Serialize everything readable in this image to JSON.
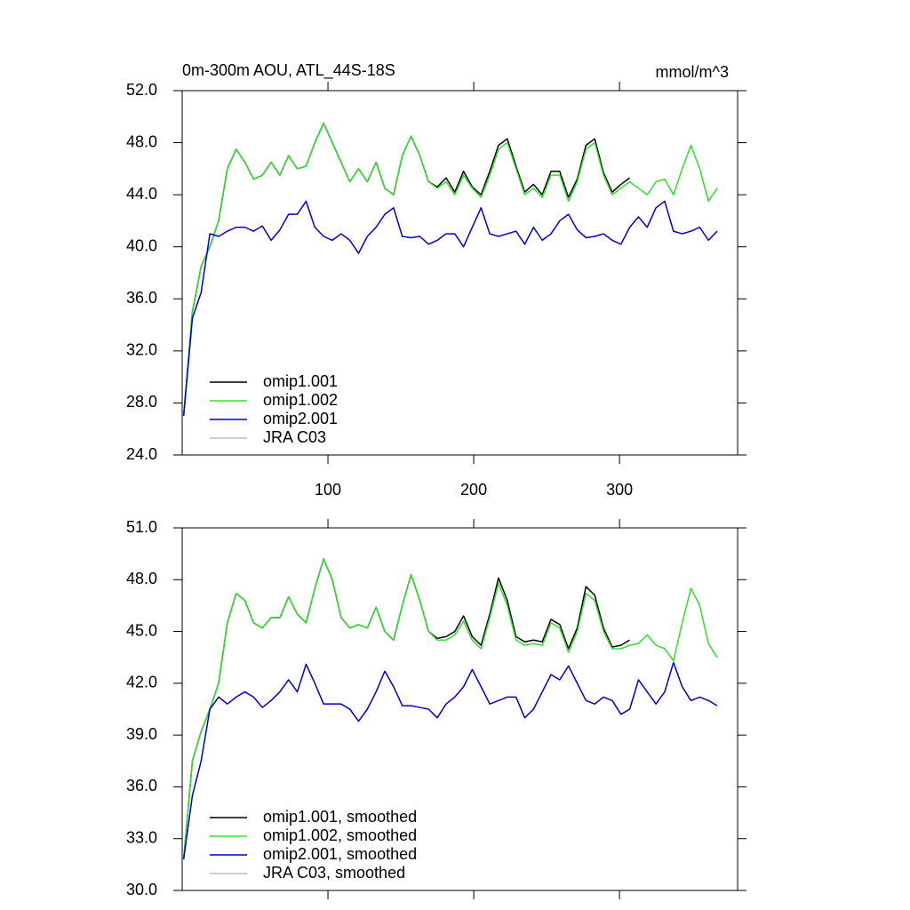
{
  "chart_data": [
    {
      "type": "line",
      "title": "0m-300m AOU, ATL_44S-18S",
      "units": "mmol/m^3",
      "x": [
        1,
        7,
        13,
        19,
        25,
        31,
        37,
        43,
        49,
        55,
        61,
        67,
        73,
        79,
        85,
        91,
        97,
        103,
        109,
        115,
        121,
        127,
        133,
        139,
        145,
        151,
        157,
        163,
        169,
        175,
        181,
        187,
        193,
        199,
        205,
        211,
        217,
        223,
        229,
        235,
        241,
        247,
        253,
        259,
        265,
        271,
        277,
        283,
        289,
        295,
        301,
        307,
        313,
        319,
        325,
        331,
        337,
        343,
        349,
        355,
        361,
        367
      ],
      "xlim": [
        0,
        381
      ],
      "xticks": [
        100,
        200,
        300
      ],
      "ylim": [
        24,
        52
      ],
      "yticks": [
        {
          "value": 24,
          "label": "24.0"
        },
        {
          "value": 28,
          "label": "28.0"
        },
        {
          "value": 32,
          "label": "32.0"
        },
        {
          "value": 36,
          "label": "36.0"
        },
        {
          "value": 40,
          "label": "40.0"
        },
        {
          "value": 44,
          "label": "44.0"
        },
        {
          "value": 48,
          "label": "48.0"
        },
        {
          "value": 52,
          "label": "52.0"
        }
      ],
      "legend": "lower left",
      "series": [
        {
          "name": "omip1.001",
          "color": "#000000",
          "values": [
            27,
            35,
            38.5,
            40,
            42,
            46,
            47.5,
            46.5,
            45.2,
            45.5,
            46.5,
            45.5,
            47,
            46,
            46.2,
            48,
            49.5,
            48,
            46.5,
            45,
            46,
            45,
            46.5,
            44.5,
            44,
            47,
            48.5,
            47,
            45,
            44.6,
            45.3,
            44.2,
            45.8,
            44.6,
            44,
            45.8,
            47.8,
            48.3,
            46.2,
            44.2,
            44.8,
            44,
            45.8,
            45.8,
            43.8,
            45.2,
            47.8,
            48.3,
            45.7,
            44.2,
            44.8,
            45.3,
            null,
            null,
            null,
            null,
            null,
            null,
            null,
            null,
            null,
            null
          ]
        },
        {
          "name": "omip1.002",
          "color": "#33dd33",
          "values": [
            27,
            35,
            38.5,
            40,
            42,
            46,
            47.5,
            46.5,
            45.2,
            45.5,
            46.5,
            45.5,
            47,
            46,
            46.2,
            48,
            49.5,
            48,
            46.5,
            45,
            46,
            45,
            46.5,
            44.5,
            44,
            47,
            48.5,
            47,
            45,
            44.5,
            45,
            44,
            45.5,
            44.5,
            43.8,
            45.5,
            47.5,
            48,
            46,
            44,
            44.5,
            43.8,
            45.5,
            45.5,
            43.5,
            45,
            47.5,
            48,
            45.5,
            44,
            44.5,
            45,
            44.5,
            44,
            45,
            45.2,
            44,
            46,
            47.8,
            46,
            43.5,
            44.5
          ]
        },
        {
          "name": "omip2.001",
          "color": "#0000cc",
          "values": [
            27,
            34.5,
            36.5,
            41,
            40.8,
            41.2,
            41.5,
            41.5,
            41.2,
            41.6,
            40.5,
            41.3,
            42.5,
            42.5,
            43.5,
            41.5,
            40.8,
            40.5,
            41,
            40.5,
            39.5,
            40.8,
            41.5,
            42.5,
            43,
            40.8,
            40.7,
            40.8,
            40.2,
            40.5,
            41,
            41,
            40,
            41.5,
            43,
            41,
            40.8,
            41,
            41.2,
            40.2,
            41.5,
            40.5,
            41,
            42,
            42.5,
            41.3,
            40.7,
            40.8,
            41,
            40.5,
            40.2,
            41.5,
            42.3,
            41.5,
            43,
            43.5,
            41.2,
            41,
            41.2,
            41.5,
            40.5,
            41.2
          ]
        },
        {
          "name": "JRA C03",
          "color": "#bbbbbb",
          "values": [
            null,
            null,
            null,
            null,
            null,
            null,
            null,
            null,
            null,
            null,
            null,
            null,
            null,
            null,
            null,
            null,
            null,
            null,
            null,
            null,
            null,
            null,
            null,
            null,
            null,
            null,
            null,
            null,
            null,
            null,
            null,
            null,
            null,
            null,
            null,
            null,
            null,
            null,
            null,
            null,
            null,
            null,
            null,
            null,
            null,
            null,
            null,
            null,
            null,
            null,
            null,
            null,
            null,
            null,
            null,
            null,
            null,
            null,
            null,
            null,
            null,
            null
          ]
        }
      ]
    },
    {
      "type": "line",
      "x": [
        1,
        7,
        13,
        19,
        25,
        31,
        37,
        43,
        49,
        55,
        61,
        67,
        73,
        79,
        85,
        91,
        97,
        103,
        109,
        115,
        121,
        127,
        133,
        139,
        145,
        151,
        157,
        163,
        169,
        175,
        181,
        187,
        193,
        199,
        205,
        211,
        217,
        223,
        229,
        235,
        241,
        247,
        253,
        259,
        265,
        271,
        277,
        283,
        289,
        295,
        301,
        307,
        313,
        319,
        325,
        331,
        337,
        343,
        349,
        355,
        361,
        367
      ],
      "xlim": [
        0,
        381
      ],
      "xticks": [
        100,
        200,
        300
      ],
      "ylim": [
        30,
        51
      ],
      "yticks": [
        {
          "value": 30,
          "label": "30.0"
        },
        {
          "value": 33,
          "label": "33.0"
        },
        {
          "value": 36,
          "label": "36.0"
        },
        {
          "value": 39,
          "label": "39.0"
        },
        {
          "value": 42,
          "label": "42.0"
        },
        {
          "value": 45,
          "label": "45.0"
        },
        {
          "value": 48,
          "label": "48.0"
        },
        {
          "value": 51,
          "label": "51.0"
        }
      ],
      "legend": "lower left",
      "series": [
        {
          "name": "omip1.001, smoothed",
          "color": "#000000",
          "values": [
            31.8,
            37.5,
            39.2,
            40.5,
            42,
            45.5,
            47.2,
            46.8,
            45.5,
            45.2,
            45.8,
            45.8,
            47,
            46,
            45.5,
            47.5,
            49.2,
            48,
            45.8,
            45.2,
            45.4,
            45.2,
            46.4,
            45,
            44.5,
            46.5,
            48.3,
            46.8,
            45,
            44.6,
            44.7,
            45,
            45.9,
            44.7,
            44.2,
            46,
            48.1,
            46.8,
            44.7,
            44.4,
            44.5,
            44.4,
            45.7,
            45.4,
            44,
            45.2,
            47.6,
            47.1,
            45.2,
            44.1,
            44.2,
            44.5,
            null,
            null,
            null,
            null,
            null,
            null,
            null,
            null,
            null,
            null
          ]
        },
        {
          "name": "omip1.002, smoothed",
          "color": "#33dd33",
          "values": [
            31.8,
            37.5,
            39.2,
            40.5,
            42,
            45.5,
            47.2,
            46.8,
            45.5,
            45.2,
            45.8,
            45.8,
            47,
            46,
            45.5,
            47.5,
            49.2,
            48,
            45.8,
            45.2,
            45.4,
            45.2,
            46.4,
            45,
            44.5,
            46.5,
            48.3,
            46.8,
            45,
            44.5,
            44.5,
            44.8,
            45.6,
            44.5,
            44,
            45.8,
            47.8,
            46.5,
            44.5,
            44.2,
            44.3,
            44.2,
            45.5,
            45.2,
            43.8,
            45,
            47.2,
            46.8,
            45,
            44,
            44,
            44.2,
            44.3,
            44.8,
            44.2,
            44,
            43.3,
            45.5,
            47.5,
            46.5,
            44.3,
            43.5
          ]
        },
        {
          "name": "omip2.001, smoothed",
          "color": "#0000cc",
          "values": [
            31.8,
            35.5,
            37.5,
            40.5,
            41.2,
            40.8,
            41.2,
            41.5,
            41.2,
            40.6,
            41,
            41.5,
            42.2,
            41.5,
            43.1,
            42,
            40.8,
            40.8,
            40.8,
            40.5,
            39.8,
            40.5,
            41.5,
            42.7,
            41.8,
            40.7,
            40.7,
            40.6,
            40.5,
            40,
            40.8,
            41.2,
            41.8,
            42.8,
            41.8,
            40.8,
            41,
            41.2,
            41.2,
            40,
            40.5,
            41.5,
            42.5,
            42.2,
            43,
            42,
            41,
            40.8,
            41.2,
            41,
            40.2,
            40.5,
            42.2,
            41.5,
            40.8,
            41.5,
            43.2,
            41.8,
            41,
            41.2,
            41,
            40.7
          ]
        },
        {
          "name": "JRA C03, smoothed",
          "color": "#bbbbbb",
          "values": [
            null,
            null,
            null,
            null,
            null,
            null,
            null,
            null,
            null,
            null,
            null,
            null,
            null,
            null,
            null,
            null,
            null,
            null,
            null,
            null,
            null,
            null,
            null,
            null,
            null,
            null,
            null,
            null,
            null,
            null,
            null,
            null,
            null,
            null,
            null,
            null,
            null,
            null,
            null,
            null,
            null,
            null,
            null,
            null,
            null,
            null,
            null,
            null,
            null,
            null,
            null,
            null,
            null,
            null,
            null,
            null,
            null,
            null,
            null,
            null,
            null,
            null
          ]
        }
      ]
    }
  ]
}
